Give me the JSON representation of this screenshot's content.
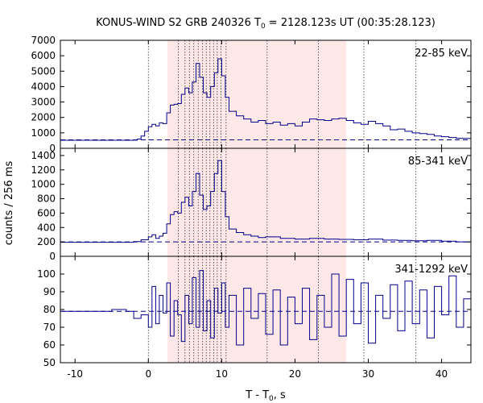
{
  "chart_data": {
    "type": "line",
    "title": {
      "prefix": "KONUS-WIND S2 GRB 240326 T",
      "sub": "0",
      "suffix": " = 2128.123s UT (00:35:28.123)"
    },
    "xlabel": {
      "prefix": "T - T",
      "sub": "0",
      "suffix": ", s"
    },
    "ylabel": "counts / 256 ms",
    "xlim": [
      -12,
      44
    ],
    "x_ticks": [
      -10,
      0,
      10,
      20,
      30,
      40
    ],
    "colors": {
      "line": "#00008b",
      "background_line": "#00008b",
      "shade": "#fde7e7",
      "markers": "#333333"
    },
    "shaded_interval": [
      2.6,
      27.0
    ],
    "vertical_markers": [
      0,
      4.1,
      5.0,
      5.6,
      6.2,
      6.8,
      7.4,
      7.9,
      8.4,
      8.9,
      9.4,
      9.9,
      10.6,
      16.2,
      23.2,
      29.4,
      36.5
    ],
    "panels": [
      {
        "label": "22-85 keV",
        "ylim": [
          0,
          7000
        ],
        "y_ticks": [
          0,
          1000,
          2000,
          3000,
          4000,
          5000,
          6000,
          7000
        ],
        "background": 550,
        "series": [
          {
            "x": -12,
            "y": 520
          },
          {
            "x": -2,
            "y": 530
          },
          {
            "x": -1.5,
            "y": 600
          },
          {
            "x": -1,
            "y": 800
          },
          {
            "x": -0.5,
            "y": 1100
          },
          {
            "x": 0,
            "y": 1400
          },
          {
            "x": 0.5,
            "y": 1550
          },
          {
            "x": 1,
            "y": 1450
          },
          {
            "x": 1.5,
            "y": 1650
          },
          {
            "x": 2,
            "y": 1600
          },
          {
            "x": 2.5,
            "y": 2300
          },
          {
            "x": 3,
            "y": 2800
          },
          {
            "x": 3.5,
            "y": 2850
          },
          {
            "x": 4,
            "y": 2900
          },
          {
            "x": 4.5,
            "y": 3500
          },
          {
            "x": 5,
            "y": 3900
          },
          {
            "x": 5.5,
            "y": 3600
          },
          {
            "x": 6,
            "y": 4300
          },
          {
            "x": 6.5,
            "y": 5500
          },
          {
            "x": 7,
            "y": 4600
          },
          {
            "x": 7.5,
            "y": 3600
          },
          {
            "x": 8,
            "y": 3300
          },
          {
            "x": 8.5,
            "y": 4000
          },
          {
            "x": 9,
            "y": 4900
          },
          {
            "x": 9.5,
            "y": 5800
          },
          {
            "x": 10,
            "y": 4700
          },
          {
            "x": 10.5,
            "y": 3300
          },
          {
            "x": 11,
            "y": 2400
          },
          {
            "x": 12,
            "y": 2100
          },
          {
            "x": 13,
            "y": 1900
          },
          {
            "x": 14,
            "y": 1700
          },
          {
            "x": 15,
            "y": 1800
          },
          {
            "x": 16,
            "y": 1600
          },
          {
            "x": 17,
            "y": 1700
          },
          {
            "x": 18,
            "y": 1500
          },
          {
            "x": 19,
            "y": 1600
          },
          {
            "x": 20,
            "y": 1450
          },
          {
            "x": 21,
            "y": 1700
          },
          {
            "x": 22,
            "y": 1900
          },
          {
            "x": 23,
            "y": 1850
          },
          {
            "x": 24,
            "y": 1800
          },
          {
            "x": 25,
            "y": 1900
          },
          {
            "x": 26,
            "y": 1950
          },
          {
            "x": 27,
            "y": 1800
          },
          {
            "x": 28,
            "y": 1650
          },
          {
            "x": 29,
            "y": 1550
          },
          {
            "x": 30,
            "y": 1750
          },
          {
            "x": 31,
            "y": 1600
          },
          {
            "x": 32,
            "y": 1450
          },
          {
            "x": 33,
            "y": 1200
          },
          {
            "x": 34,
            "y": 1250
          },
          {
            "x": 35,
            "y": 1100
          },
          {
            "x": 36,
            "y": 1000
          },
          {
            "x": 37,
            "y": 950
          },
          {
            "x": 38,
            "y": 900
          },
          {
            "x": 39,
            "y": 800
          },
          {
            "x": 40,
            "y": 750
          },
          {
            "x": 41,
            "y": 700
          },
          {
            "x": 42,
            "y": 650
          },
          {
            "x": 43,
            "y": 640
          },
          {
            "x": 44,
            "y": 620
          }
        ]
      },
      {
        "label": "85-341 keV",
        "ylim": [
          0,
          1500
        ],
        "y_ticks": [
          0,
          200,
          400,
          600,
          800,
          1000,
          1200,
          1400
        ],
        "background": 200,
        "series": [
          {
            "x": -12,
            "y": 195
          },
          {
            "x": -2,
            "y": 205
          },
          {
            "x": -1,
            "y": 230
          },
          {
            "x": 0,
            "y": 270
          },
          {
            "x": 0.5,
            "y": 300
          },
          {
            "x": 1,
            "y": 250
          },
          {
            "x": 1.5,
            "y": 280
          },
          {
            "x": 2,
            "y": 320
          },
          {
            "x": 2.5,
            "y": 450
          },
          {
            "x": 3,
            "y": 580
          },
          {
            "x": 3.5,
            "y": 620
          },
          {
            "x": 4,
            "y": 600
          },
          {
            "x": 4.5,
            "y": 750
          },
          {
            "x": 5,
            "y": 820
          },
          {
            "x": 5.5,
            "y": 700
          },
          {
            "x": 6,
            "y": 900
          },
          {
            "x": 6.5,
            "y": 1150
          },
          {
            "x": 7,
            "y": 850
          },
          {
            "x": 7.5,
            "y": 650
          },
          {
            "x": 8,
            "y": 700
          },
          {
            "x": 8.5,
            "y": 900
          },
          {
            "x": 9,
            "y": 1150
          },
          {
            "x": 9.5,
            "y": 1330
          },
          {
            "x": 10,
            "y": 900
          },
          {
            "x": 10.5,
            "y": 550
          },
          {
            "x": 11,
            "y": 380
          },
          {
            "x": 12,
            "y": 330
          },
          {
            "x": 13,
            "y": 300
          },
          {
            "x": 14,
            "y": 280
          },
          {
            "x": 15,
            "y": 260
          },
          {
            "x": 16,
            "y": 270
          },
          {
            "x": 18,
            "y": 250
          },
          {
            "x": 20,
            "y": 240
          },
          {
            "x": 22,
            "y": 250
          },
          {
            "x": 24,
            "y": 240
          },
          {
            "x": 26,
            "y": 235
          },
          {
            "x": 28,
            "y": 230
          },
          {
            "x": 30,
            "y": 240
          },
          {
            "x": 32,
            "y": 225
          },
          {
            "x": 34,
            "y": 220
          },
          {
            "x": 36,
            "y": 215
          },
          {
            "x": 38,
            "y": 220
          },
          {
            "x": 40,
            "y": 210
          },
          {
            "x": 42,
            "y": 200
          },
          {
            "x": 44,
            "y": 205
          }
        ]
      },
      {
        "label": "341-1292 keV",
        "ylim": [
          50,
          110
        ],
        "y_ticks": [
          50,
          60,
          70,
          80,
          90,
          100
        ],
        "background": 79,
        "series": [
          {
            "x": -12,
            "y": 79
          },
          {
            "x": -6,
            "y": 79
          },
          {
            "x": -5,
            "y": 80
          },
          {
            "x": -3,
            "y": 79
          },
          {
            "x": -2,
            "y": 75
          },
          {
            "x": -1,
            "y": 77
          },
          {
            "x": 0,
            "y": 70
          },
          {
            "x": 0.5,
            "y": 93
          },
          {
            "x": 1,
            "y": 72
          },
          {
            "x": 1.5,
            "y": 88
          },
          {
            "x": 2,
            "y": 78
          },
          {
            "x": 2.5,
            "y": 95
          },
          {
            "x": 3,
            "y": 65
          },
          {
            "x": 3.5,
            "y": 85
          },
          {
            "x": 4,
            "y": 77
          },
          {
            "x": 4.5,
            "y": 62
          },
          {
            "x": 5,
            "y": 88
          },
          {
            "x": 5.5,
            "y": 72
          },
          {
            "x": 6,
            "y": 98
          },
          {
            "x": 6.5,
            "y": 70
          },
          {
            "x": 7,
            "y": 102
          },
          {
            "x": 7.5,
            "y": 68
          },
          {
            "x": 8,
            "y": 85
          },
          {
            "x": 8.5,
            "y": 64
          },
          {
            "x": 9,
            "y": 92
          },
          {
            "x": 9.5,
            "y": 78
          },
          {
            "x": 10,
            "y": 95
          },
          {
            "x": 10.5,
            "y": 70
          },
          {
            "x": 11,
            "y": 88
          },
          {
            "x": 12,
            "y": 60
          },
          {
            "x": 13,
            "y": 92
          },
          {
            "x": 14,
            "y": 75
          },
          {
            "x": 15,
            "y": 89
          },
          {
            "x": 16,
            "y": 66
          },
          {
            "x": 17,
            "y": 91
          },
          {
            "x": 18,
            "y": 60
          },
          {
            "x": 19,
            "y": 87
          },
          {
            "x": 20,
            "y": 72
          },
          {
            "x": 21,
            "y": 92
          },
          {
            "x": 22,
            "y": 63
          },
          {
            "x": 23,
            "y": 88
          },
          {
            "x": 24,
            "y": 70
          },
          {
            "x": 25,
            "y": 100
          },
          {
            "x": 26,
            "y": 65
          },
          {
            "x": 27,
            "y": 97
          },
          {
            "x": 28,
            "y": 72
          },
          {
            "x": 29,
            "y": 95
          },
          {
            "x": 30,
            "y": 61
          },
          {
            "x": 31,
            "y": 88
          },
          {
            "x": 32,
            "y": 75
          },
          {
            "x": 33,
            "y": 94
          },
          {
            "x": 34,
            "y": 68
          },
          {
            "x": 35,
            "y": 96
          },
          {
            "x": 36,
            "y": 72
          },
          {
            "x": 37,
            "y": 91
          },
          {
            "x": 38,
            "y": 64
          },
          {
            "x": 39,
            "y": 93
          },
          {
            "x": 40,
            "y": 77
          },
          {
            "x": 41,
            "y": 99
          },
          {
            "x": 42,
            "y": 70
          },
          {
            "x": 43,
            "y": 86
          },
          {
            "x": 44,
            "y": 74
          }
        ]
      }
    ]
  }
}
